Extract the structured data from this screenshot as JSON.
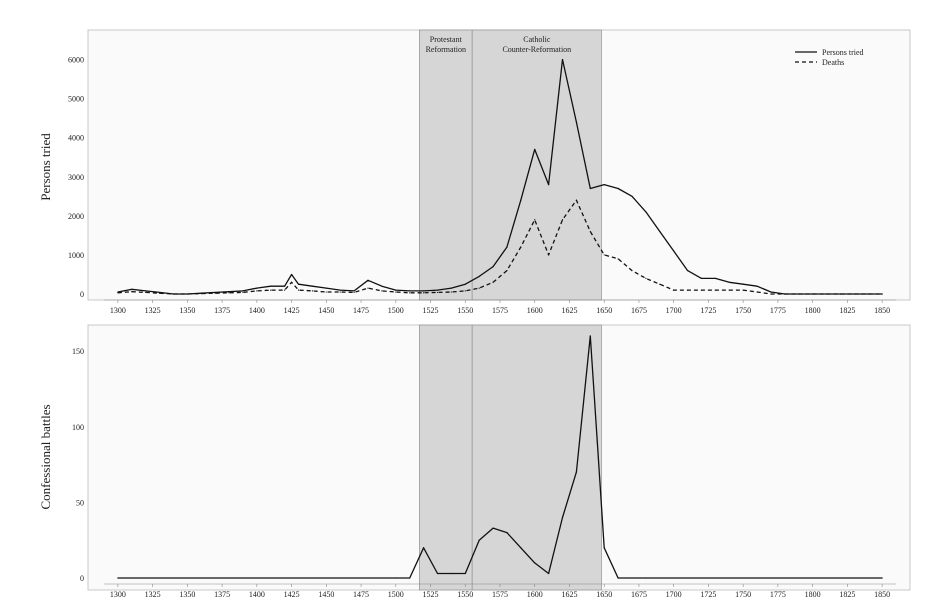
{
  "chart_data": [
    {
      "type": "line",
      "ylabel": "Persons tried",
      "xlim": [
        1290,
        1860
      ],
      "ylim": [
        0,
        6500
      ],
      "x_ticks": [
        "1300",
        "1325",
        "1350",
        "1375",
        "1400",
        "1425",
        "1450",
        "1475",
        "1500",
        "1525",
        "1550",
        "1575",
        "1600",
        "1625",
        "1650",
        "1675",
        "1700",
        "1725",
        "1750",
        "1775",
        "1800",
        "1825",
        "1850"
      ],
      "y_ticks": [
        "0",
        "1000",
        "2000",
        "3000",
        "4000",
        "5000",
        "6000"
      ],
      "shaded_regions": [
        {
          "from": 1517,
          "to": 1555,
          "label_lines": [
            "Protestant",
            "Reformation"
          ]
        },
        {
          "from": 1555,
          "to": 1648,
          "label_lines": [
            "Catholic",
            "Counter-Reformation"
          ]
        }
      ],
      "legend": {
        "position": "top-right"
      },
      "series": [
        {
          "name": "Persons tried",
          "style": "solid",
          "x": [
            1300,
            1310,
            1320,
            1330,
            1340,
            1350,
            1360,
            1370,
            1380,
            1390,
            1400,
            1410,
            1420,
            1425,
            1430,
            1440,
            1450,
            1460,
            1470,
            1480,
            1490,
            1500,
            1510,
            1520,
            1530,
            1540,
            1550,
            1560,
            1570,
            1580,
            1590,
            1600,
            1610,
            1620,
            1630,
            1640,
            1650,
            1660,
            1670,
            1680,
            1690,
            1700,
            1710,
            1720,
            1730,
            1740,
            1750,
            1760,
            1770,
            1780,
            1790,
            1800,
            1810,
            1820,
            1830,
            1840,
            1850
          ],
          "values": [
            50,
            120,
            80,
            40,
            0,
            0,
            20,
            40,
            60,
            80,
            150,
            200,
            200,
            500,
            250,
            200,
            150,
            100,
            80,
            350,
            200,
            100,
            80,
            80,
            100,
            150,
            250,
            450,
            700,
            1200,
            2400,
            3700,
            2800,
            6000,
            4400,
            2700,
            2800,
            2700,
            2500,
            2100,
            1600,
            1100,
            600,
            400,
            400,
            300,
            250,
            200,
            50,
            0,
            0,
            0,
            0,
            0,
            0,
            0,
            0
          ]
        },
        {
          "name": "Deaths",
          "style": "dashed",
          "x": [
            1300,
            1310,
            1320,
            1330,
            1340,
            1350,
            1360,
            1370,
            1380,
            1390,
            1400,
            1410,
            1420,
            1425,
            1430,
            1440,
            1450,
            1460,
            1470,
            1480,
            1490,
            1500,
            1510,
            1520,
            1530,
            1540,
            1550,
            1560,
            1570,
            1580,
            1590,
            1600,
            1610,
            1620,
            1630,
            1640,
            1650,
            1660,
            1670,
            1680,
            1690,
            1700,
            1710,
            1720,
            1730,
            1740,
            1750,
            1760,
            1770,
            1780,
            1790,
            1800,
            1810,
            1820,
            1830,
            1840,
            1850
          ],
          "values": [
            30,
            60,
            40,
            20,
            0,
            0,
            10,
            20,
            30,
            40,
            80,
            100,
            100,
            300,
            100,
            80,
            50,
            50,
            40,
            150,
            80,
            50,
            30,
            30,
            40,
            50,
            80,
            150,
            300,
            600,
            1200,
            1900,
            1000,
            1900,
            2400,
            1600,
            1000,
            900,
            600,
            400,
            250,
            100,
            100,
            100,
            100,
            100,
            100,
            50,
            0,
            0,
            0,
            0,
            0,
            0,
            0,
            0,
            0
          ]
        }
      ]
    },
    {
      "type": "line",
      "ylabel": "Confessional battles",
      "xlim": [
        1290,
        1860
      ],
      "ylim": [
        0,
        160
      ],
      "x_ticks": [
        "1300",
        "1325",
        "1350",
        "1375",
        "1400",
        "1425",
        "1450",
        "1475",
        "1500",
        "1525",
        "1550",
        "1575",
        "1600",
        "1625",
        "1650",
        "1675",
        "1700",
        "1725",
        "1750",
        "1775",
        "1800",
        "1825",
        "1850"
      ],
      "y_ticks": [
        "0",
        "50",
        "100",
        "150"
      ],
      "shaded_regions": [
        {
          "from": 1517,
          "to": 1555
        },
        {
          "from": 1555,
          "to": 1648
        }
      ],
      "series": [
        {
          "style": "solid",
          "x": [
            1300,
            1500,
            1510,
            1520,
            1530,
            1540,
            1550,
            1560,
            1570,
            1580,
            1590,
            1600,
            1610,
            1620,
            1630,
            1640,
            1645,
            1650,
            1660,
            1670,
            1680,
            1850
          ],
          "values": [
            0,
            0,
            0,
            20,
            3,
            3,
            3,
            25,
            33,
            30,
            20,
            10,
            3,
            40,
            70,
            160,
            90,
            20,
            0,
            0,
            0,
            0
          ]
        }
      ]
    }
  ]
}
